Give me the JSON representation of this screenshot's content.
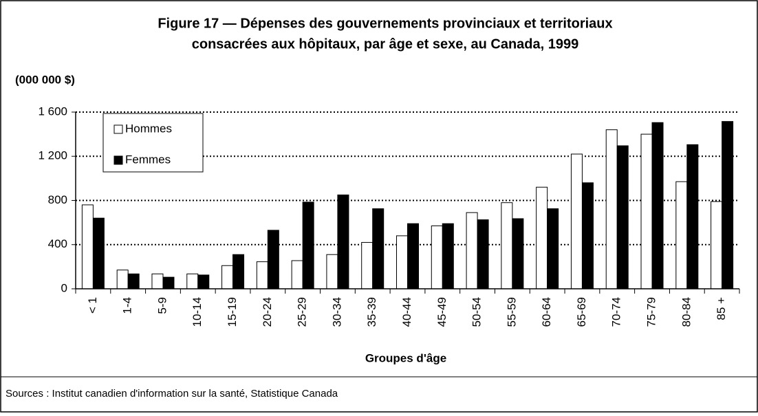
{
  "chart_data": {
    "type": "bar",
    "title": [
      "Figure 17 — Dépenses des gouvernements provinciaux et territoriaux",
      "consacrées aux hôpitaux, par âge et sexe, au Canada, 1999"
    ],
    "y_unit": "(000 000 $)",
    "x_label": "Groupes d'âge",
    "source": "Sources : Institut canadien d'information sur la santé, Statistique Canada",
    "categories": [
      "< 1",
      "1-4",
      "5-9",
      "10-14",
      "15-19",
      "20-24",
      "25-29",
      "30-34",
      "35-39",
      "40-44",
      "45-49",
      "50-54",
      "55-59",
      "60-64",
      "65-69",
      "70-74",
      "75-79",
      "80-84",
      "85 +"
    ],
    "series": [
      {
        "name": "Hommes",
        "color": "#ffffff",
        "values": [
          760,
          170,
          135,
          135,
          210,
          245,
          255,
          310,
          420,
          480,
          570,
          690,
          780,
          920,
          1220,
          1440,
          1400,
          970,
          790
        ]
      },
      {
        "name": "Femmes",
        "color": "#000000",
        "values": [
          640,
          135,
          105,
          125,
          310,
          530,
          785,
          850,
          725,
          590,
          590,
          625,
          635,
          725,
          960,
          1295,
          1505,
          1305,
          1515
        ]
      }
    ],
    "ylim": [
      0,
      1600
    ],
    "yticks": [
      0,
      400,
      800,
      {
        "value": 1200,
        "label": "1 200"
      },
      {
        "value": 1600,
        "label": "1 600"
      }
    ],
    "grid": true,
    "legend": "upper left"
  }
}
